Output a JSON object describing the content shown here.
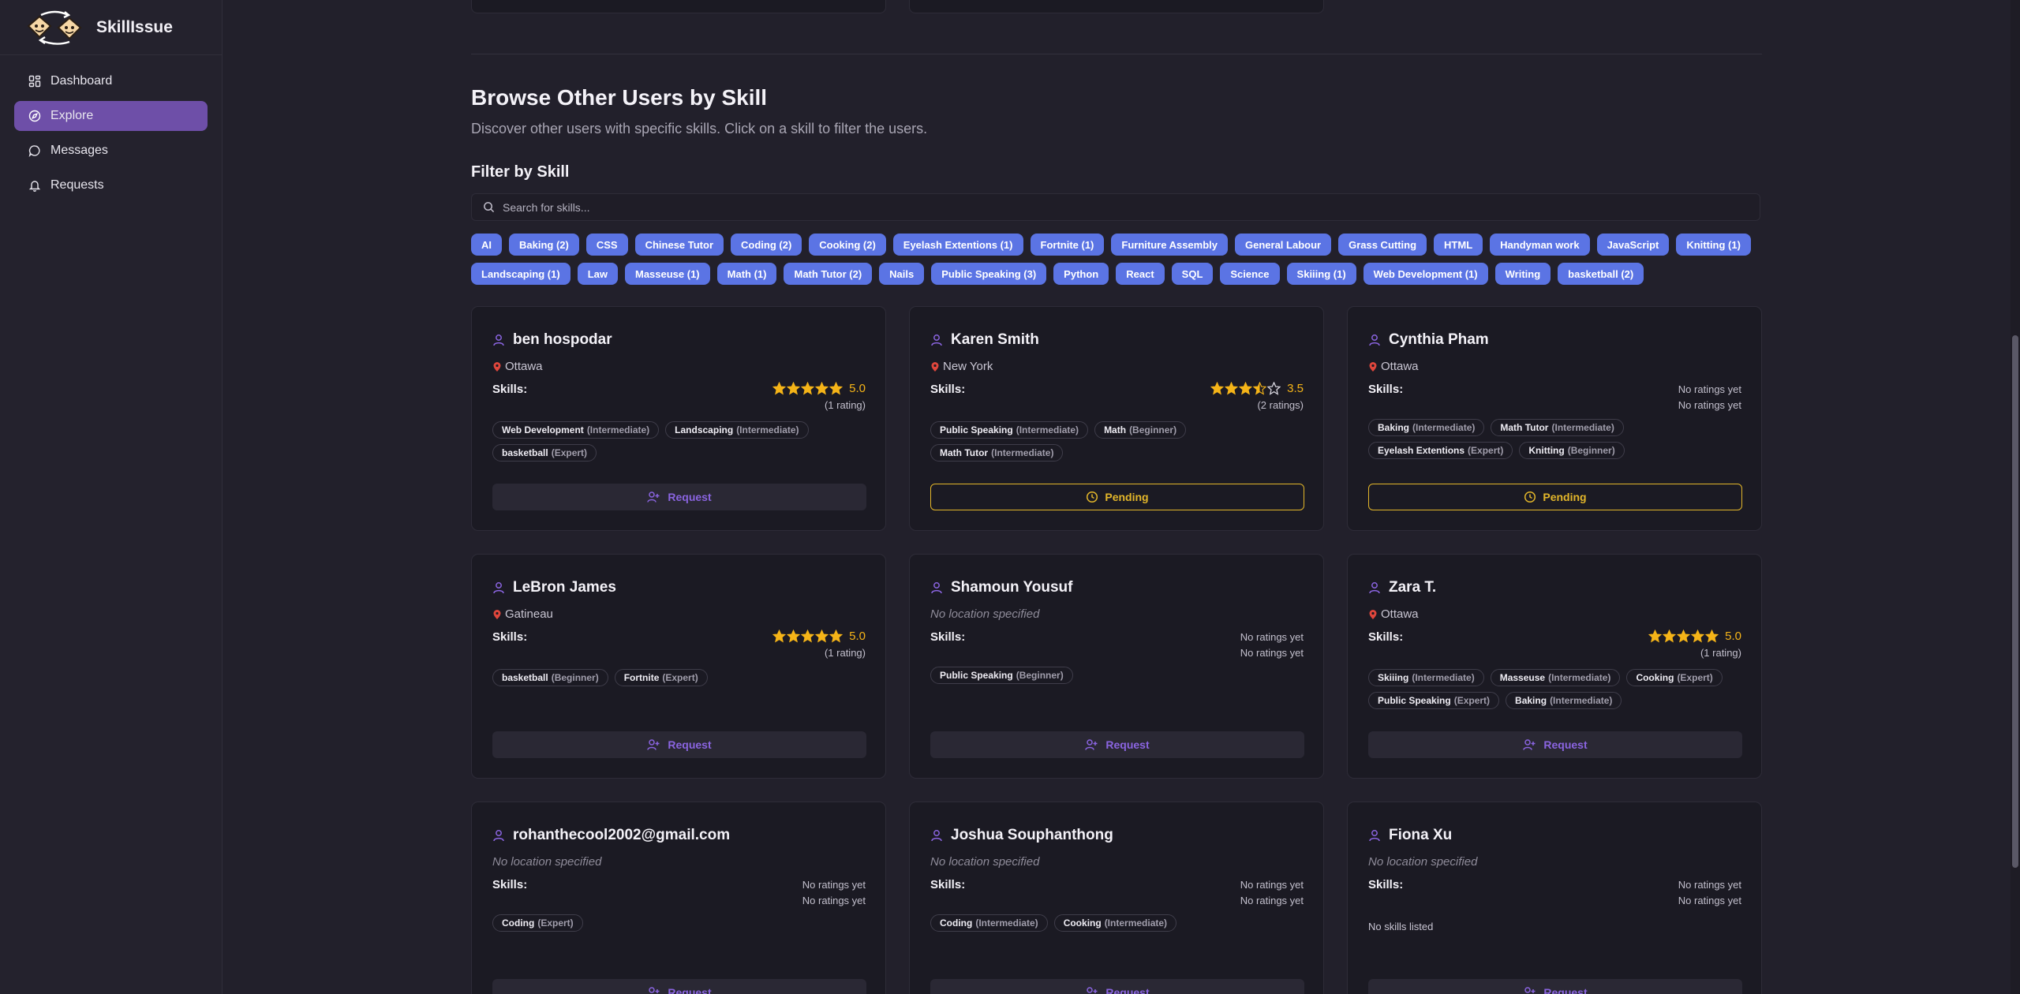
{
  "app": {
    "name": "SkillIssue"
  },
  "sidebar": {
    "items": [
      {
        "label": "Dashboard",
        "icon": "dashboard-icon",
        "active": false
      },
      {
        "label": "Explore",
        "icon": "compass-icon",
        "active": true
      },
      {
        "label": "Messages",
        "icon": "message-icon",
        "active": false
      },
      {
        "label": "Requests",
        "icon": "bell-icon",
        "active": false
      }
    ]
  },
  "browse": {
    "title": "Browse Other Users by Skill",
    "description": "Discover other users with specific skills. Click on a skill to filter the users.",
    "filter_title": "Filter by Skill",
    "search_placeholder": "Search for skills..."
  },
  "skill_filters": [
    "AI",
    "Baking (2)",
    "CSS",
    "Chinese Tutor",
    "Coding (2)",
    "Cooking (2)",
    "Eyelash Extentions (1)",
    "Fortnite (1)",
    "Furniture Assembly",
    "General Labour",
    "Grass Cutting",
    "HTML",
    "Handyman work",
    "JavaScript",
    "Knitting (1)",
    "Landscaping (1)",
    "Law",
    "Masseuse (1)",
    "Math (1)",
    "Math Tutor (2)",
    "Nails",
    "Public Speaking (3)",
    "Python",
    "React",
    "SQL",
    "Science",
    "Skiiing (1)",
    "Web Development (1)",
    "Writing",
    "basketball (2)"
  ],
  "labels": {
    "skills": "Skills:",
    "no_ratings": "No ratings yet",
    "request": "Request",
    "pending": "Pending",
    "no_skills": "No skills listed"
  },
  "colors": {
    "accent": "#6e4fa8",
    "tag": "#5b74e4",
    "star": "#f5b418",
    "pending": "#e3b62a",
    "location_pin": "#e0463c"
  },
  "users": [
    {
      "name": "ben hospodar",
      "location": "Ottawa",
      "rating": 5.0,
      "rating_text": "5.0",
      "rating_count": "(1 rating)",
      "skills": [
        {
          "name": "Web Development",
          "level": "(Intermediate)"
        },
        {
          "name": "Landscaping",
          "level": "(Intermediate)"
        },
        {
          "name": "basketball",
          "level": "(Expert)"
        }
      ],
      "status": "request"
    },
    {
      "name": "Karen Smith",
      "location": "New York",
      "rating": 3.5,
      "rating_text": "3.5",
      "rating_count": "(2 ratings)",
      "skills": [
        {
          "name": "Public Speaking",
          "level": "(Intermediate)"
        },
        {
          "name": "Math",
          "level": "(Beginner)"
        },
        {
          "name": "Math Tutor",
          "level": "(Intermediate)"
        }
      ],
      "status": "pending"
    },
    {
      "name": "Cynthia Pham",
      "location": "Ottawa",
      "rating": null,
      "skills": [
        {
          "name": "Baking",
          "level": "(Intermediate)"
        },
        {
          "name": "Math Tutor",
          "level": "(Intermediate)"
        },
        {
          "name": "Eyelash Extentions",
          "level": "(Expert)"
        },
        {
          "name": "Knitting",
          "level": "(Beginner)"
        }
      ],
      "status": "pending"
    },
    {
      "name": "LeBron James",
      "location": "Gatineau",
      "rating": 5.0,
      "rating_text": "5.0",
      "rating_count": "(1 rating)",
      "skills": [
        {
          "name": "basketball",
          "level": "(Beginner)"
        },
        {
          "name": "Fortnite",
          "level": "(Expert)"
        }
      ],
      "status": "request"
    },
    {
      "name": "Shamoun Yousuf",
      "location": null,
      "location_empty": "No location specified",
      "rating": null,
      "skills": [
        {
          "name": "Public Speaking",
          "level": "(Beginner)"
        }
      ],
      "status": "request"
    },
    {
      "name": "Zara T.",
      "location": "Ottawa",
      "rating": 5.0,
      "rating_text": "5.0",
      "rating_count": "(1 rating)",
      "skills": [
        {
          "name": "Skiiing",
          "level": "(Intermediate)"
        },
        {
          "name": "Masseuse",
          "level": "(Intermediate)"
        },
        {
          "name": "Cooking",
          "level": "(Expert)"
        },
        {
          "name": "Public Speaking",
          "level": "(Expert)"
        },
        {
          "name": "Baking",
          "level": "(Intermediate)"
        }
      ],
      "status": "request"
    },
    {
      "name": "rohanthecool2002@gmail.com",
      "location": null,
      "location_empty": "No location specified",
      "rating": null,
      "skills": [
        {
          "name": "Coding",
          "level": "(Expert)"
        }
      ],
      "status": "request"
    },
    {
      "name": "Joshua Souphanthong",
      "location": null,
      "location_empty": "No location specified",
      "rating": null,
      "skills": [
        {
          "name": "Coding",
          "level": "(Intermediate)"
        },
        {
          "name": "Cooking",
          "level": "(Intermediate)"
        }
      ],
      "status": "request"
    },
    {
      "name": "Fiona Xu",
      "location": null,
      "location_empty": "No location specified",
      "rating": null,
      "skills": [],
      "status": "request"
    }
  ]
}
